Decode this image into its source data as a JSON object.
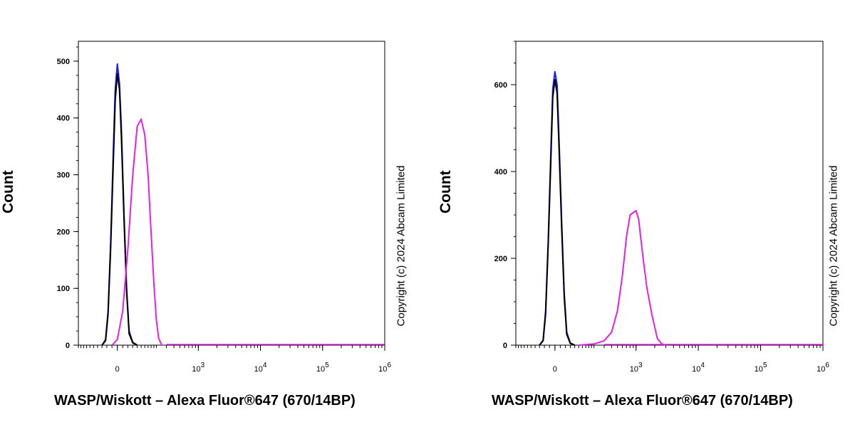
{
  "chart_data": [
    {
      "type": "line",
      "title": "",
      "xlabel": "WASP/Wiskott – Alexa Fluor®647 (670/14BP)",
      "ylabel": "Count",
      "watermark": "Copyright (c) 2024 Abcam Limited",
      "x_scale": "biexponential",
      "y_ticks": [
        0,
        100,
        200,
        300,
        400,
        500
      ],
      "ylim": [
        0,
        535
      ],
      "x_tick_labels": [
        {
          "value": 0,
          "base": "0",
          "exp": ""
        },
        {
          "value": 1000,
          "base": "10",
          "exp": "3"
        },
        {
          "value": 10000,
          "base": "10",
          "exp": "4"
        },
        {
          "value": 100000,
          "base": "10",
          "exp": "5"
        },
        {
          "value": 1000000,
          "base": "10",
          "exp": "6"
        }
      ],
      "series": [
        {
          "color": "#1a1aff",
          "x": [
            -60,
            -45,
            -35,
            -25,
            -15,
            -8,
            0,
            8,
            15,
            25,
            35,
            45,
            60,
            80
          ],
          "y": [
            0,
            10,
            60,
            180,
            340,
            450,
            495,
            460,
            380,
            230,
            100,
            25,
            5,
            0
          ]
        },
        {
          "color": "#000000",
          "x": [
            -60,
            -45,
            -35,
            -25,
            -15,
            -8,
            0,
            8,
            15,
            25,
            35,
            45,
            60,
            80
          ],
          "y": [
            0,
            8,
            55,
            170,
            320,
            430,
            478,
            450,
            365,
            220,
            95,
            20,
            4,
            0
          ]
        },
        {
          "color": "#e81ee8",
          "x": [
            -20,
            0,
            20,
            40,
            60,
            80,
            100,
            120,
            140,
            160,
            180,
            200,
            220,
            250
          ],
          "y": [
            0,
            10,
            60,
            170,
            300,
            385,
            398,
            370,
            300,
            200,
            110,
            45,
            12,
            0
          ]
        }
      ]
    },
    {
      "type": "line",
      "title": "",
      "xlabel": "WASP/Wiskott – Alexa Fluor®647 (670/14BP)",
      "ylabel": "Count",
      "watermark": "Copyright (c) 2024 Abcam Limited",
      "x_scale": "biexponential",
      "y_ticks": [
        0,
        200,
        400,
        600
      ],
      "ylim": [
        0,
        700
      ],
      "x_tick_labels": [
        {
          "value": 0,
          "base": "0",
          "exp": ""
        },
        {
          "value": 1000,
          "base": "10",
          "exp": "3"
        },
        {
          "value": 10000,
          "base": "10",
          "exp": "4"
        },
        {
          "value": 100000,
          "base": "10",
          "exp": "5"
        },
        {
          "value": 1000000,
          "base": "10",
          "exp": "6"
        }
      ],
      "series": [
        {
          "color": "#1a1aff",
          "x": [
            -60,
            -45,
            -35,
            -25,
            -15,
            -8,
            0,
            8,
            15,
            25,
            35,
            45,
            60,
            80
          ],
          "y": [
            0,
            12,
            80,
            240,
            450,
            590,
            630,
            600,
            480,
            290,
            120,
            30,
            5,
            0
          ]
        },
        {
          "color": "#000000",
          "x": [
            -60,
            -45,
            -35,
            -25,
            -15,
            -8,
            0,
            8,
            15,
            25,
            35,
            45,
            60,
            80
          ],
          "y": [
            0,
            10,
            72,
            230,
            430,
            570,
            612,
            580,
            460,
            275,
            110,
            25,
            4,
            0
          ]
        },
        {
          "color": "#e81ee8",
          "x": [
            100,
            200,
            300,
            400,
            500,
            600,
            700,
            800,
            900,
            1000,
            1100,
            1300,
            1500,
            1800,
            2200,
            2600,
            3000
          ],
          "y": [
            0,
            3,
            10,
            30,
            80,
            160,
            250,
            300,
            305,
            310,
            290,
            200,
            130,
            70,
            15,
            3,
            0
          ]
        }
      ]
    }
  ]
}
